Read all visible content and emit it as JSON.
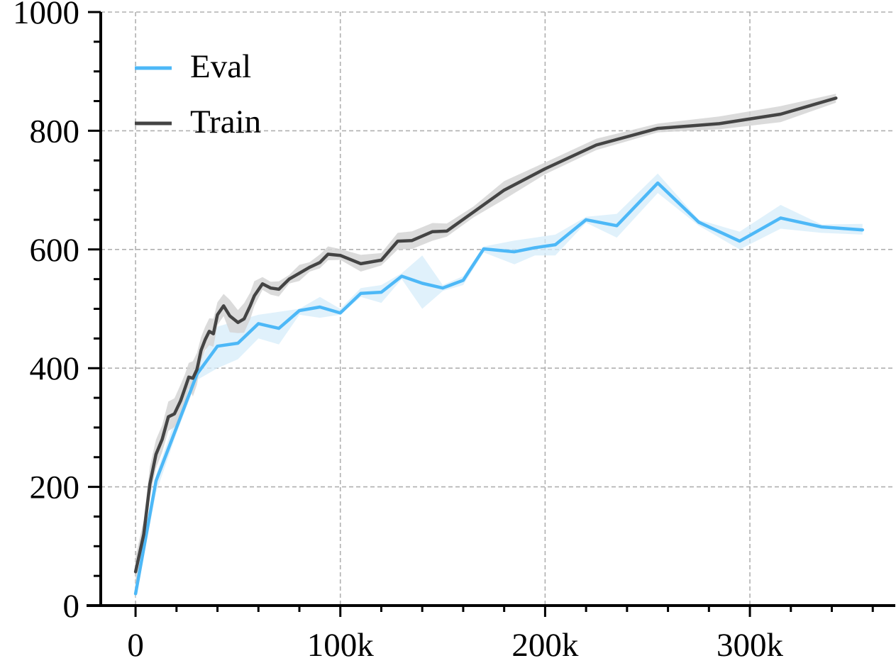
{
  "chart_data": {
    "type": "line",
    "xlim": [
      -17000,
      371000
    ],
    "ylim": [
      0,
      1000
    ],
    "x_ticks": [
      0,
      100000,
      200000,
      300000
    ],
    "x_tick_labels": [
      "0",
      "100k",
      "200k",
      "300k"
    ],
    "y_ticks": [
      0,
      200,
      400,
      600,
      800,
      1000
    ],
    "y_tick_labels": [
      "0",
      "200",
      "400",
      "600",
      "800",
      "1000"
    ],
    "grid": true,
    "legend_position": "top-left",
    "series": [
      {
        "name": "Eval",
        "color": "#4db8f7",
        "band_color": "#d6ecfa",
        "x": [
          0,
          10000,
          20000,
          30000,
          40000,
          50000,
          60000,
          70000,
          80000,
          90000,
          100000,
          110000,
          120000,
          130000,
          140000,
          150000,
          160000,
          170000,
          185000,
          195000,
          205000,
          220000,
          235000,
          255000,
          275000,
          295000,
          315000,
          335000,
          355000
        ],
        "y": [
          20,
          210,
          300,
          390,
          437,
          442,
          475,
          467,
          497,
          503,
          493,
          526,
          528,
          555,
          543,
          535,
          548,
          601,
          596,
          603,
          608,
          650,
          640,
          712,
          646,
          614,
          653,
          638,
          633
        ],
        "upper": [
          30,
          220,
          320,
          400,
          470,
          480,
          490,
          495,
          500,
          520,
          500,
          535,
          540,
          560,
          590,
          540,
          555,
          605,
          615,
          620,
          625,
          655,
          660,
          728,
          650,
          630,
          675,
          642,
          643
        ],
        "lower": [
          10,
          190,
          290,
          380,
          400,
          415,
          450,
          440,
          490,
          485,
          490,
          520,
          510,
          550,
          500,
          530,
          540,
          595,
          575,
          590,
          590,
          645,
          620,
          695,
          640,
          600,
          635,
          628,
          625
        ]
      },
      {
        "name": "Train",
        "color": "#444444",
        "band_color": "#d5d5d5",
        "x": [
          0,
          4000,
          7000,
          10000,
          13000,
          16000,
          19000,
          22000,
          24000,
          26000,
          28000,
          30000,
          32000,
          34000,
          36000,
          38000,
          40000,
          43000,
          46000,
          50000,
          53000,
          56000,
          58000,
          62000,
          66000,
          70000,
          75000,
          80000,
          85000,
          90000,
          94000,
          100000,
          110000,
          120000,
          128000,
          135000,
          145000,
          152000,
          165000,
          180000,
          200000,
          225000,
          255000,
          285000,
          315000,
          342000
        ],
        "y": [
          57,
          120,
          205,
          255,
          280,
          318,
          323,
          345,
          365,
          385,
          383,
          398,
          430,
          448,
          462,
          458,
          490,
          505,
          488,
          477,
          483,
          505,
          522,
          542,
          535,
          533,
          550,
          560,
          570,
          578,
          592,
          590,
          576,
          582,
          614,
          615,
          630,
          631,
          663,
          700,
          736,
          776,
          804,
          812,
          828,
          855
        ]
      }
    ]
  }
}
